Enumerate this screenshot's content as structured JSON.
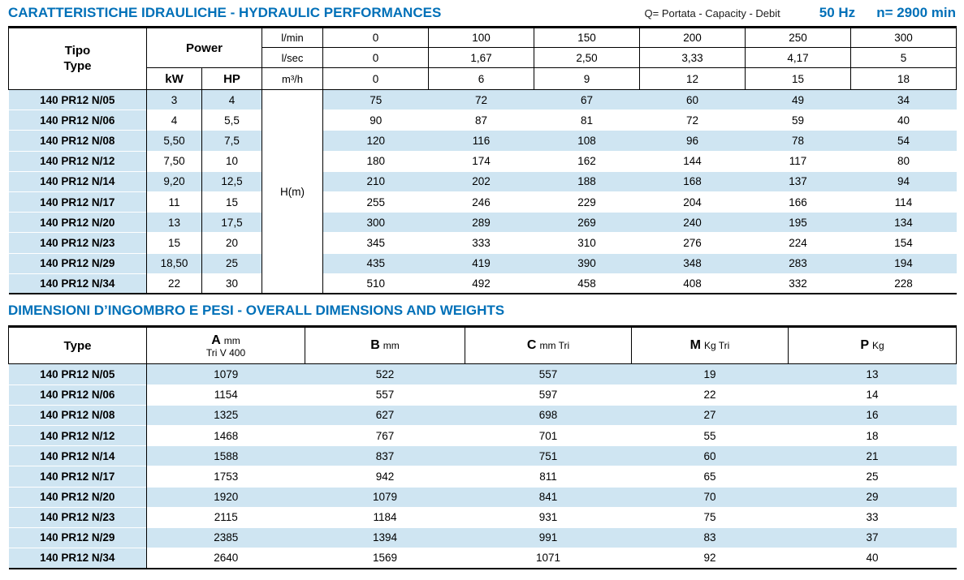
{
  "page_header": {
    "title": "CARATTERISTICHE IDRAULICHE - HYDRAULIC PERFORMANCES",
    "capacity_note": "Q= Portata - Capacity - Debit",
    "frequency": "50 Hz",
    "speed": "n= 2900 min"
  },
  "hydraulic": {
    "tipo_label": "Tipo",
    "type_label": "Type",
    "power_label": "Power",
    "kw_label": "kW",
    "hp_label": "HP",
    "head_label": "H(m)",
    "flow_units": {
      "lmin": "l/min",
      "lsec": "l/sec",
      "m3h": "m³/h"
    },
    "flow_values": {
      "lmin": [
        "0",
        "100",
        "150",
        "200",
        "250",
        "300"
      ],
      "lsec": [
        "0",
        "1,67",
        "2,50",
        "3,33",
        "4,17",
        "5"
      ],
      "m3h": [
        "0",
        "6",
        "9",
        "12",
        "15",
        "18"
      ]
    },
    "rows": [
      {
        "type": "140 PR12 N/05",
        "kw": "3",
        "hp": "4",
        "h": [
          "75",
          "72",
          "67",
          "60",
          "49",
          "34"
        ]
      },
      {
        "type": "140 PR12 N/06",
        "kw": "4",
        "hp": "5,5",
        "h": [
          "90",
          "87",
          "81",
          "72",
          "59",
          "40"
        ]
      },
      {
        "type": "140 PR12 N/08",
        "kw": "5,50",
        "hp": "7,5",
        "h": [
          "120",
          "116",
          "108",
          "96",
          "78",
          "54"
        ]
      },
      {
        "type": "140 PR12 N/12",
        "kw": "7,50",
        "hp": "10",
        "h": [
          "180",
          "174",
          "162",
          "144",
          "117",
          "80"
        ]
      },
      {
        "type": "140 PR12 N/14",
        "kw": "9,20",
        "hp": "12,5",
        "h": [
          "210",
          "202",
          "188",
          "168",
          "137",
          "94"
        ]
      },
      {
        "type": "140 PR12 N/17",
        "kw": "11",
        "hp": "15",
        "h": [
          "255",
          "246",
          "229",
          "204",
          "166",
          "114"
        ]
      },
      {
        "type": "140 PR12 N/20",
        "kw": "13",
        "hp": "17,5",
        "h": [
          "300",
          "289",
          "269",
          "240",
          "195",
          "134"
        ]
      },
      {
        "type": "140 PR12 N/23",
        "kw": "15",
        "hp": "20",
        "h": [
          "345",
          "333",
          "310",
          "276",
          "224",
          "154"
        ]
      },
      {
        "type": "140 PR12 N/29",
        "kw": "18,50",
        "hp": "25",
        "h": [
          "435",
          "419",
          "390",
          "348",
          "283",
          "194"
        ]
      },
      {
        "type": "140 PR12 N/34",
        "kw": "22",
        "hp": "30",
        "h": [
          "510",
          "492",
          "458",
          "408",
          "332",
          "228"
        ]
      }
    ]
  },
  "dimensions": {
    "title": "DIMENSIONI D’INGOMBRO E PESI - OVERALL DIMENSIONS AND WEIGHTS",
    "type_label": "Type",
    "columns": [
      {
        "letter": "A",
        "unit": "mm",
        "sub": "Tri V 400"
      },
      {
        "letter": "B",
        "unit": "mm",
        "sub": ""
      },
      {
        "letter": "C",
        "unit": "mm Tri",
        "sub": ""
      },
      {
        "letter": "M",
        "unit": "Kg Tri",
        "sub": ""
      },
      {
        "letter": "P",
        "unit": "Kg",
        "sub": ""
      }
    ],
    "rows": [
      {
        "type": "140 PR12 N/05",
        "values": [
          "1079",
          "522",
          "557",
          "19",
          "13"
        ]
      },
      {
        "type": "140 PR12 N/06",
        "values": [
          "1154",
          "557",
          "597",
          "22",
          "14"
        ]
      },
      {
        "type": "140 PR12 N/08",
        "values": [
          "1325",
          "627",
          "698",
          "27",
          "16"
        ]
      },
      {
        "type": "140 PR12 N/12",
        "values": [
          "1468",
          "767",
          "701",
          "55",
          "18"
        ]
      },
      {
        "type": "140 PR12 N/14",
        "values": [
          "1588",
          "837",
          "751",
          "60",
          "21"
        ]
      },
      {
        "type": "140 PR12 N/17",
        "values": [
          "1753",
          "942",
          "811",
          "65",
          "25"
        ]
      },
      {
        "type": "140 PR12 N/20",
        "values": [
          "1920",
          "1079",
          "841",
          "70",
          "29"
        ]
      },
      {
        "type": "140 PR12 N/23",
        "values": [
          "2115",
          "1184",
          "931",
          "75",
          "33"
        ]
      },
      {
        "type": "140 PR12 N/29",
        "values": [
          "2385",
          "1394",
          "991",
          "83",
          "37"
        ]
      },
      {
        "type": "140 PR12 N/34",
        "values": [
          "2640",
          "1569",
          "1071",
          "92",
          "40"
        ]
      }
    ]
  }
}
